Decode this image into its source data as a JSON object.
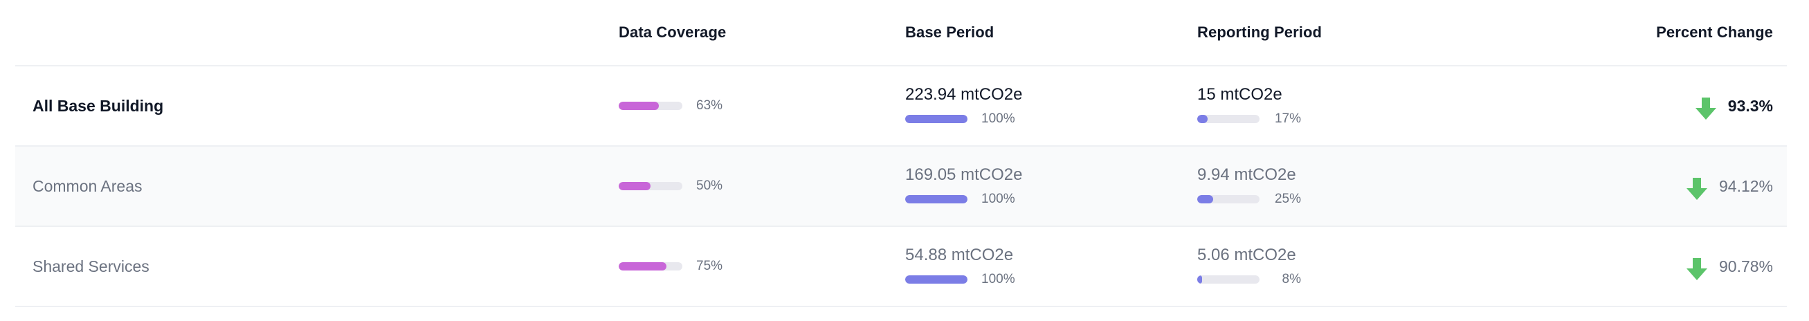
{
  "headers": {
    "name": "",
    "data_coverage": "Data Coverage",
    "base_period": "Base Period",
    "reporting_period": "Reporting Period",
    "percent_change": "Percent Change"
  },
  "colors": {
    "coverage_bar": "#c866d8",
    "period_bar": "#7b7de6",
    "bar_track": "#e8e8ee",
    "decrease_arrow": "#5cc46a",
    "alt_row_bg": "#f9fafb"
  },
  "rows": [
    {
      "name": "All Base Building",
      "coverage_label": "63%",
      "coverage_fraction": 0.63,
      "base_value": "223.94 mtCO2e",
      "base_pct_label": "100%",
      "base_fraction": 1.0,
      "reporting_value": "15 mtCO2e",
      "reporting_pct_label": "17%",
      "reporting_fraction": 0.17,
      "change_icon": "arrow-down-icon",
      "change": "93.3%"
    },
    {
      "name": "Common Areas",
      "coverage_label": "50%",
      "coverage_fraction": 0.5,
      "base_value": "169.05 mtCO2e",
      "base_pct_label": "100%",
      "base_fraction": 1.0,
      "reporting_value": "9.94 mtCO2e",
      "reporting_pct_label": "25%",
      "reporting_fraction": 0.25,
      "change_icon": "arrow-down-icon",
      "change": "94.12%"
    },
    {
      "name": "Shared Services",
      "coverage_label": "75%",
      "coverage_fraction": 0.75,
      "base_value": "54.88 mtCO2e",
      "base_pct_label": "100%",
      "base_fraction": 1.0,
      "reporting_value": "5.06 mtCO2e",
      "reporting_pct_label": "8%",
      "reporting_fraction": 0.08,
      "change_icon": "arrow-down-icon",
      "change": "90.78%"
    }
  ]
}
